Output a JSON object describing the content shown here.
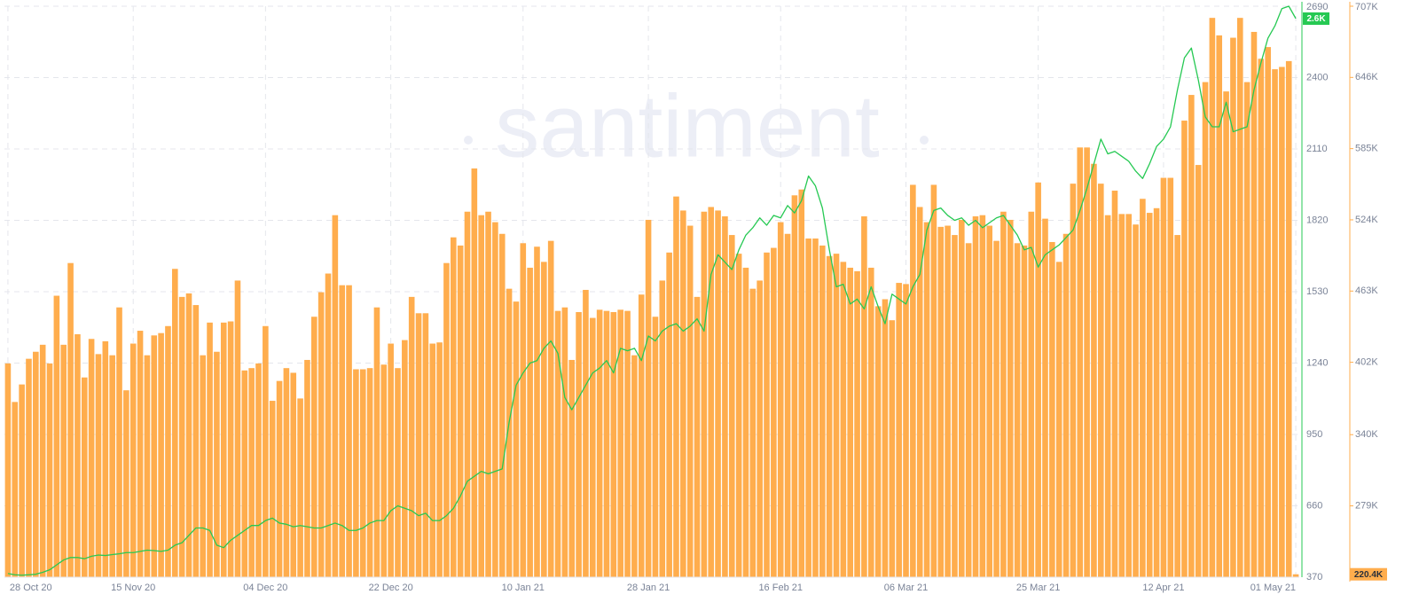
{
  "chart_data": {
    "type": "combo",
    "watermark": "santiment",
    "grid": true,
    "x": [
      "2020-10-28",
      "2020-10-29",
      "2020-10-30",
      "2020-10-31",
      "2020-11-01",
      "2020-11-02",
      "2020-11-03",
      "2020-11-04",
      "2020-11-05",
      "2020-11-06",
      "2020-11-07",
      "2020-11-08",
      "2020-11-09",
      "2020-11-10",
      "2020-11-11",
      "2020-11-12",
      "2020-11-13",
      "2020-11-14",
      "2020-11-15",
      "2020-11-16",
      "2020-11-17",
      "2020-11-18",
      "2020-11-19",
      "2020-11-20",
      "2020-11-21",
      "2020-11-22",
      "2020-11-23",
      "2020-11-24",
      "2020-11-25",
      "2020-11-26",
      "2020-11-27",
      "2020-11-28",
      "2020-11-29",
      "2020-11-30",
      "2020-12-01",
      "2020-12-02",
      "2020-12-03",
      "2020-12-04",
      "2020-12-05",
      "2020-12-06",
      "2020-12-07",
      "2020-12-08",
      "2020-12-09",
      "2020-12-10",
      "2020-12-11",
      "2020-12-12",
      "2020-12-13",
      "2020-12-14",
      "2020-12-15",
      "2020-12-16",
      "2020-12-17",
      "2020-12-18",
      "2020-12-19",
      "2020-12-20",
      "2020-12-21",
      "2020-12-22",
      "2020-12-23",
      "2020-12-24",
      "2020-12-25",
      "2020-12-26",
      "2020-12-27",
      "2020-12-28",
      "2020-12-29",
      "2020-12-30",
      "2020-12-31",
      "2021-01-01",
      "2021-01-02",
      "2021-01-03",
      "2021-01-04",
      "2021-01-05",
      "2021-01-06",
      "2021-01-07",
      "2021-01-08",
      "2021-01-09",
      "2021-01-10",
      "2021-01-11",
      "2021-01-12",
      "2021-01-13",
      "2021-01-14",
      "2021-01-15",
      "2021-01-16",
      "2021-01-17",
      "2021-01-18",
      "2021-01-19",
      "2021-01-20",
      "2021-01-21",
      "2021-01-22",
      "2021-01-23",
      "2021-01-24",
      "2021-01-25",
      "2021-01-26",
      "2021-01-27",
      "2021-01-28",
      "2021-01-29",
      "2021-01-30",
      "2021-01-31",
      "2021-02-01",
      "2021-02-02",
      "2021-02-03",
      "2021-02-04",
      "2021-02-05",
      "2021-02-06",
      "2021-02-07",
      "2021-02-08",
      "2021-02-09",
      "2021-02-10",
      "2021-02-11",
      "2021-02-12",
      "2021-02-13",
      "2021-02-14",
      "2021-02-15",
      "2021-02-16",
      "2021-02-17",
      "2021-02-18",
      "2021-02-19",
      "2021-02-20",
      "2021-02-21",
      "2021-02-22",
      "2021-02-23",
      "2021-02-24",
      "2021-02-25",
      "2021-02-26",
      "2021-02-27",
      "2021-02-28",
      "2021-03-01",
      "2021-03-02",
      "2021-03-03",
      "2021-03-04",
      "2021-03-05",
      "2021-03-06",
      "2021-03-07",
      "2021-03-08",
      "2021-03-09",
      "2021-03-10",
      "2021-03-11",
      "2021-03-12",
      "2021-03-13",
      "2021-03-14",
      "2021-03-15",
      "2021-03-16",
      "2021-03-17",
      "2021-03-18",
      "2021-03-19",
      "2021-03-20",
      "2021-03-21",
      "2021-03-22",
      "2021-03-23",
      "2021-03-24",
      "2021-03-25",
      "2021-03-26",
      "2021-03-27",
      "2021-03-28",
      "2021-03-29",
      "2021-03-30",
      "2021-03-31",
      "2021-04-01",
      "2021-04-02",
      "2021-04-03",
      "2021-04-04",
      "2021-04-05",
      "2021-04-06",
      "2021-04-07",
      "2021-04-08",
      "2021-04-09",
      "2021-04-10",
      "2021-04-11",
      "2021-04-12",
      "2021-04-13",
      "2021-04-14",
      "2021-04-15",
      "2021-04-16",
      "2021-04-17",
      "2021-04-18",
      "2021-04-19",
      "2021-04-20",
      "2021-04-21",
      "2021-04-22",
      "2021-04-23",
      "2021-04-24",
      "2021-04-25",
      "2021-04-26",
      "2021-04-27",
      "2021-04-28",
      "2021-04-29",
      "2021-04-30",
      "2021-05-01"
    ],
    "xticks": [
      {
        "value": "2020-10-28",
        "label": "28 Oct 20"
      },
      {
        "value": "2020-11-15",
        "label": "15 Nov 20"
      },
      {
        "value": "2020-12-04",
        "label": "04 Dec 20"
      },
      {
        "value": "2020-12-22",
        "label": "22 Dec 20"
      },
      {
        "value": "2021-01-10",
        "label": "10 Jan 21"
      },
      {
        "value": "2021-01-28",
        "label": "28 Jan 21"
      },
      {
        "value": "2021-02-16",
        "label": "16 Feb 21"
      },
      {
        "value": "2021-03-06",
        "label": "06 Mar 21"
      },
      {
        "value": "2021-03-25",
        "label": "25 Mar 21"
      },
      {
        "value": "2021-04-12",
        "label": "12 Apr 21"
      },
      {
        "value": "2021-05-01",
        "label": "01 May 21"
      }
    ],
    "ylim": [
      370,
      2690
    ],
    "yticks": [
      370,
      660,
      950,
      1240,
      1530,
      1820,
      2110,
      2400,
      2690
    ],
    "y2lim": [
      217.9,
      707
    ],
    "y2ticks": [
      {
        "value": 279,
        "label": "279K"
      },
      {
        "value": 340,
        "label": "340K"
      },
      {
        "value": 402,
        "label": "402K"
      },
      {
        "value": 463,
        "label": "463K"
      },
      {
        "value": 524,
        "label": "524K"
      },
      {
        "value": 585,
        "label": "585K"
      },
      {
        "value": 646,
        "label": "646K"
      },
      {
        "value": 707,
        "label": "707K"
      }
    ],
    "series": [
      {
        "type": "bar",
        "axis": "y2",
        "color": "#ffad4d",
        "last_value_label": "220.4K",
        "values": [
          401,
          368,
          383,
          405,
          411,
          417,
          401,
          459,
          417,
          487,
          426,
          389,
          422,
          409,
          420,
          408,
          449,
          378,
          418,
          429,
          408,
          425,
          427,
          433,
          482,
          458,
          461,
          451,
          408,
          436,
          411,
          436,
          437,
          472,
          395,
          397,
          401,
          433,
          369,
          386,
          397,
          393,
          371,
          404,
          441,
          462,
          478,
          528,
          468,
          468,
          396,
          396,
          397,
          449,
          400,
          418,
          397,
          421,
          458,
          444,
          444,
          418,
          419,
          487,
          509,
          502,
          531,
          568,
          528,
          531,
          522,
          512,
          465,
          454,
          504,
          483,
          501,
          488,
          506,
          446,
          449,
          404,
          445,
          464,
          440,
          447,
          446,
          445,
          447,
          446,
          408,
          460,
          524,
          441,
          472,
          496,
          544,
          532,
          519,
          458,
          531,
          535,
          532,
          527,
          511,
          495,
          483,
          465,
          472,
          496,
          500,
          522,
          512,
          545,
          550,
          508,
          508,
          502,
          493,
          495,
          488,
          483,
          480,
          527,
          483,
          450,
          456,
          438,
          470,
          469,
          554,
          535,
          522,
          554,
          518,
          519,
          511,
          524,
          504,
          527,
          528,
          519,
          506,
          531,
          524,
          504,
          502,
          531,
          556,
          525,
          505,
          488,
          512,
          555,
          586,
          586,
          572,
          555,
          528,
          549,
          529,
          529,
          520,
          542,
          530,
          534,
          560,
          560,
          511,
          609,
          631,
          571,
          642,
          697,
          682,
          634,
          680,
          697,
          642,
          685,
          662,
          672,
          653,
          655,
          660,
          220.4
        ]
      },
      {
        "type": "line",
        "color": "#26c953",
        "last_value_label": "2.6K",
        "values": [
          385,
          380,
          378,
          380,
          382,
          390,
          400,
          420,
          440,
          450,
          450,
          445,
          455,
          460,
          458,
          462,
          465,
          470,
          470,
          475,
          480,
          478,
          475,
          480,
          500,
          510,
          540,
          570,
          570,
          560,
          500,
          490,
          520,
          540,
          560,
          580,
          580,
          600,
          610,
          590,
          585,
          575,
          580,
          575,
          570,
          570,
          580,
          590,
          580,
          560,
          560,
          570,
          590,
          600,
          600,
          640,
          660,
          650,
          640,
          620,
          630,
          600,
          600,
          620,
          650,
          700,
          760,
          780,
          800,
          790,
          800,
          810,
          1000,
          1150,
          1200,
          1240,
          1250,
          1300,
          1330,
          1280,
          1100,
          1050,
          1100,
          1150,
          1200,
          1220,
          1250,
          1200,
          1300,
          1290,
          1300,
          1250,
          1350,
          1330,
          1370,
          1390,
          1400,
          1370,
          1390,
          1420,
          1370,
          1600,
          1680,
          1650,
          1620,
          1700,
          1760,
          1790,
          1830,
          1800,
          1840,
          1830,
          1880,
          1850,
          1900,
          2000,
          1960,
          1870,
          1700,
          1550,
          1560,
          1480,
          1500,
          1460,
          1550,
          1470,
          1400,
          1520,
          1500,
          1480,
          1550,
          1600,
          1780,
          1860,
          1870,
          1840,
          1820,
          1830,
          1800,
          1820,
          1790,
          1810,
          1830,
          1840,
          1800,
          1760,
          1700,
          1710,
          1630,
          1680,
          1700,
          1720,
          1750,
          1780,
          1860,
          1950,
          2050,
          2150,
          2090,
          2100,
          2080,
          2060,
          2020,
          1990,
          2050,
          2120,
          2150,
          2200,
          2350,
          2480,
          2520,
          2390,
          2240,
          2200,
          2200,
          2300,
          2180,
          2190,
          2200,
          2350,
          2460,
          2560,
          2610,
          2680,
          2690,
          2640
        ]
      }
    ]
  }
}
